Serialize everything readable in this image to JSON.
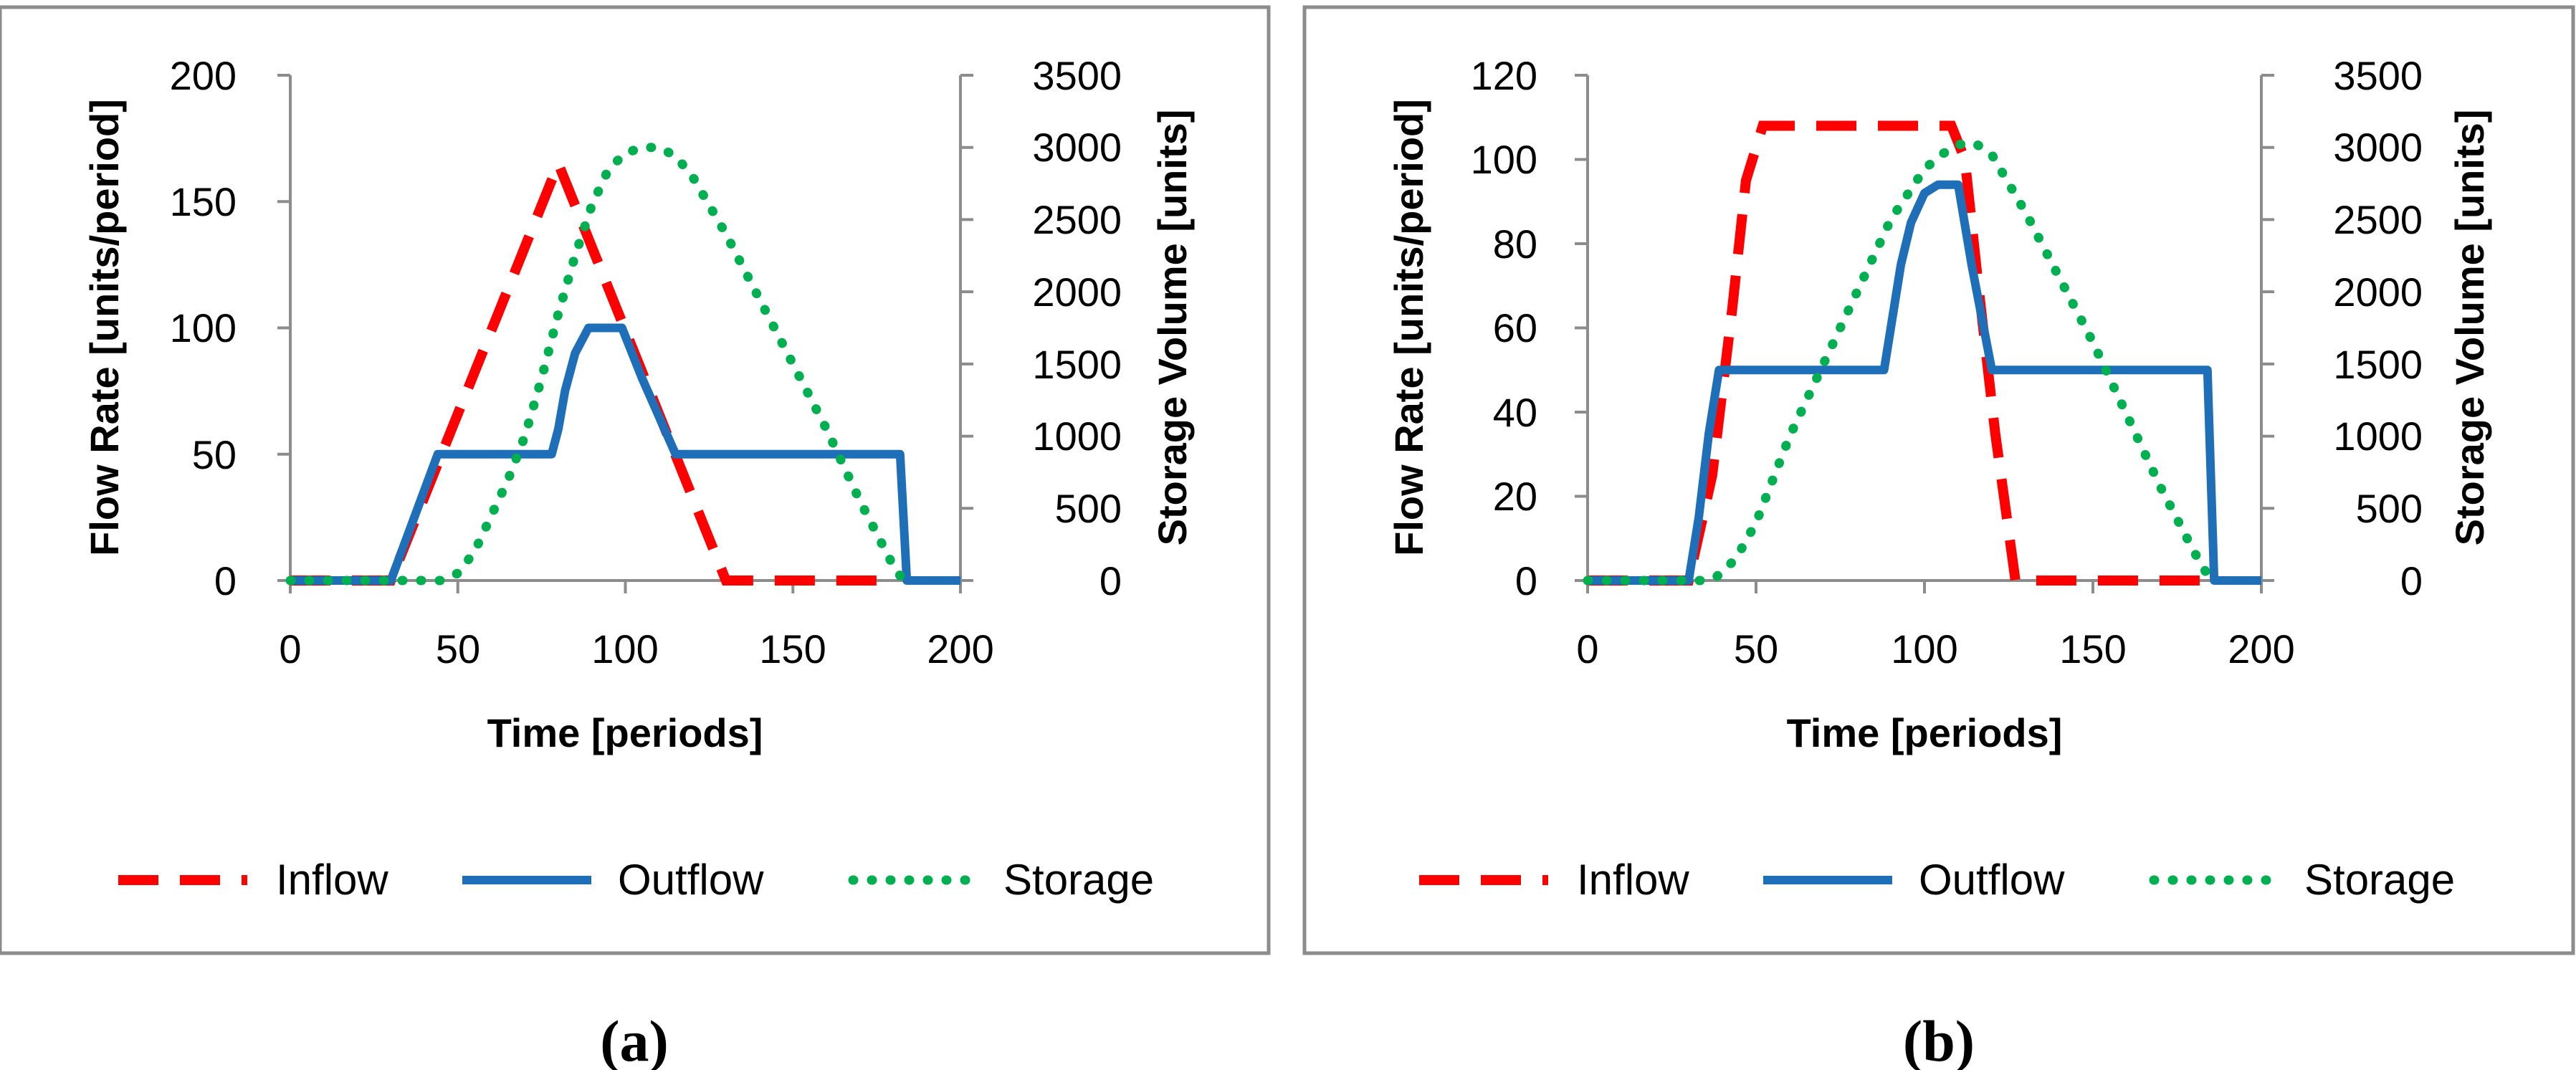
{
  "chart_data": [
    {
      "type": "line",
      "panel_label": "a",
      "xlabel": "Time [periods]",
      "ylabel": "Flow Rate [units/period]",
      "y2label": "Storage Volume [units]",
      "xlim": [
        0,
        200
      ],
      "ylim": [
        0,
        200
      ],
      "y2lim": [
        0,
        3500
      ],
      "xticks": [
        "0",
        "50",
        "100",
        "150",
        "200"
      ],
      "yticks": [
        "0",
        "50",
        "100",
        "150",
        "200"
      ],
      "y2ticks": [
        "0",
        "500",
        "1000",
        "1500",
        "2000",
        "2500",
        "3000",
        "3500"
      ],
      "legend_position": "bottom",
      "series": [
        {
          "name": "Inflow",
          "axis": "left",
          "color": "#ff0000",
          "style": "dashed",
          "points": [
            [
              0,
              0
            ],
            [
              30,
              0
            ],
            [
              80,
              165
            ],
            [
              130,
              0
            ],
            [
              180,
              0
            ]
          ]
        },
        {
          "name": "Outflow",
          "axis": "left",
          "color": "#1f6fb8",
          "style": "solid",
          "points": [
            [
              0,
              0
            ],
            [
              30,
              0
            ],
            [
              44,
              50
            ],
            [
              78,
              50
            ],
            [
              80,
              60
            ],
            [
              82,
              75
            ],
            [
              85,
              90
            ],
            [
              89,
              100
            ],
            [
              99,
              100
            ],
            [
              105,
              80
            ],
            [
              115,
              50
            ],
            [
              160,
              50
            ],
            [
              182,
              50
            ],
            [
              184,
              0
            ],
            [
              200,
              0
            ]
          ]
        },
        {
          "name": "Storage",
          "axis": "right",
          "color": "#00b050",
          "style": "dotted",
          "points": [
            [
              0,
              0
            ],
            [
              45,
              0
            ],
            [
              50,
              50
            ],
            [
              55,
              200
            ],
            [
              60,
              450
            ],
            [
              65,
              700
            ],
            [
              70,
              1000
            ],
            [
              75,
              1400
            ],
            [
              80,
              1850
            ],
            [
              85,
              2250
            ],
            [
              90,
              2600
            ],
            [
              95,
              2850
            ],
            [
              100,
              2960
            ],
            [
              105,
              3000
            ],
            [
              110,
              3000
            ],
            [
              115,
              2940
            ],
            [
              120,
              2800
            ],
            [
              130,
              2400
            ],
            [
              140,
              1950
            ],
            [
              150,
              1500
            ],
            [
              160,
              1050
            ],
            [
              170,
              550
            ],
            [
              180,
              100
            ],
            [
              183,
              0
            ]
          ]
        }
      ]
    },
    {
      "type": "line",
      "panel_label": "b",
      "xlabel": "Time [periods]",
      "ylabel": "Flow Rate [units/period]",
      "y2label": "Storage Volume [units]",
      "xlim": [
        0,
        200
      ],
      "ylim": [
        0,
        120
      ],
      "y2lim": [
        0,
        3500
      ],
      "xticks": [
        "0",
        "50",
        "100",
        "150",
        "200"
      ],
      "yticks": [
        "0",
        "20",
        "40",
        "60",
        "80",
        "100",
        "120"
      ],
      "y2ticks": [
        "0",
        "500",
        "1000",
        "1500",
        "2000",
        "2500",
        "3000",
        "3500"
      ],
      "legend_position": "bottom",
      "series": [
        {
          "name": "Inflow",
          "axis": "left",
          "color": "#ff0000",
          "style": "dashed",
          "points": [
            [
              0,
              0
            ],
            [
              30,
              0
            ],
            [
              37,
              25
            ],
            [
              43,
              65
            ],
            [
              47,
              95
            ],
            [
              52,
              108
            ],
            [
              108,
              108
            ],
            [
              112,
              100
            ],
            [
              116,
              70
            ],
            [
              121,
              35
            ],
            [
              127,
              0
            ],
            [
              185,
              0
            ]
          ]
        },
        {
          "name": "Outflow",
          "axis": "left",
          "color": "#1f6fb8",
          "style": "solid",
          "points": [
            [
              0,
              0
            ],
            [
              30,
              0
            ],
            [
              33,
              15
            ],
            [
              36,
              35
            ],
            [
              39,
              50
            ],
            [
              88,
              50
            ],
            [
              90,
              60
            ],
            [
              93,
              75
            ],
            [
              96,
              85
            ],
            [
              100,
              92
            ],
            [
              104,
              94
            ],
            [
              110,
              94
            ],
            [
              114,
              75
            ],
            [
              120,
              50
            ],
            [
              184,
              50
            ],
            [
              186,
              0
            ],
            [
              200,
              0
            ]
          ]
        },
        {
          "name": "Storage",
          "axis": "right",
          "color": "#00b050",
          "style": "dotted",
          "points": [
            [
              0,
              0
            ],
            [
              34,
              0
            ],
            [
              38,
              20
            ],
            [
              44,
              150
            ],
            [
              50,
              400
            ],
            [
              55,
              700
            ],
            [
              60,
              1000
            ],
            [
              70,
              1500
            ],
            [
              80,
              2000
            ],
            [
              90,
              2500
            ],
            [
              100,
              2850
            ],
            [
              105,
              2950
            ],
            [
              110,
              3020
            ],
            [
              115,
              3030
            ],
            [
              120,
              2950
            ],
            [
              130,
              2550
            ],
            [
              140,
              2100
            ],
            [
              150,
              1650
            ],
            [
              160,
              1150
            ],
            [
              170,
              650
            ],
            [
              180,
              200
            ],
            [
              185,
              0
            ]
          ]
        }
      ]
    }
  ]
}
